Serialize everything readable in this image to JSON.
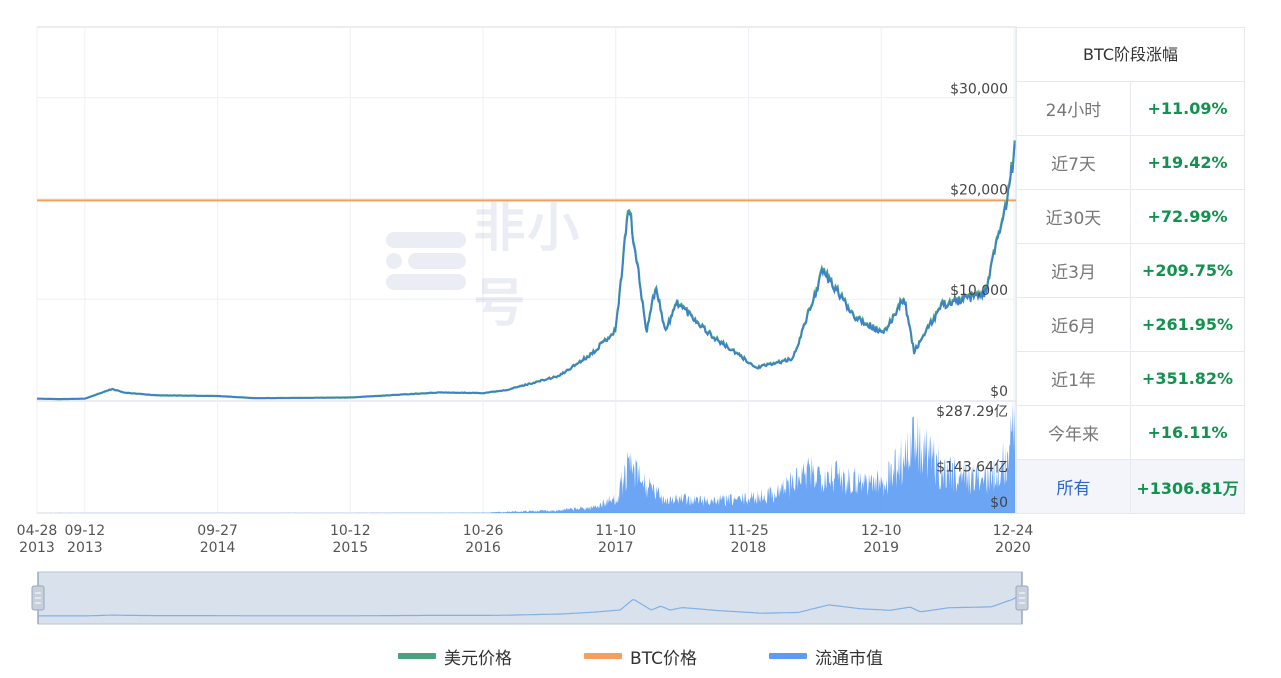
{
  "chart_data": {
    "type": "line",
    "x_axis": {
      "ticks": [
        {
          "date": "2013-04-28",
          "line1": "04-28",
          "line2": "2013"
        },
        {
          "date": "2013-09-12",
          "line1": "09-12",
          "line2": "2013"
        },
        {
          "date": "2014-09-27",
          "line1": "09-27",
          "line2": "2014"
        },
        {
          "date": "2015-10-12",
          "line1": "10-12",
          "line2": "2015"
        },
        {
          "date": "2016-10-26",
          "line1": "10-26",
          "line2": "2016"
        },
        {
          "date": "2017-11-10",
          "line1": "11-10",
          "line2": "2017"
        },
        {
          "date": "2018-11-25",
          "line1": "11-25",
          "line2": "2018"
        },
        {
          "date": "2019-12-10",
          "line1": "12-10",
          "line2": "2019"
        },
        {
          "date": "2020-12-24",
          "line1": "12-24",
          "line2": "2020"
        }
      ]
    },
    "price_axis": {
      "min": 0,
      "max": 37000,
      "ticks": [
        {
          "value": 0,
          "label": "$0"
        },
        {
          "value": 10000,
          "label": "$10,000"
        },
        {
          "value": 20000,
          "label": "$20,000"
        },
        {
          "value": 30000,
          "label": "$30,000"
        }
      ]
    },
    "volume_axis": {
      "min": 0,
      "max": 287.29,
      "ticks": [
        {
          "value": 0,
          "label": "$0"
        },
        {
          "value": 143.64,
          "label": "$143.64亿"
        },
        {
          "value": 287.29,
          "label": "$287.29亿"
        }
      ]
    },
    "series": [
      {
        "name": "美元价格",
        "color": "#4aa37f",
        "points": [
          [
            "2013-04-28",
            135
          ],
          [
            "2013-07-01",
            90
          ],
          [
            "2013-09-12",
            130
          ],
          [
            "2013-11-29",
            1100
          ],
          [
            "2013-12-31",
            750
          ],
          [
            "2014-04-01",
            470
          ],
          [
            "2014-09-27",
            400
          ],
          [
            "2015-01-14",
            180
          ],
          [
            "2015-10-12",
            250
          ],
          [
            "2016-06-17",
            750
          ],
          [
            "2016-10-26",
            690
          ],
          [
            "2017-01-01",
            1000
          ],
          [
            "2017-06-01",
            2400
          ],
          [
            "2017-09-01",
            4600
          ],
          [
            "2017-11-10",
            7000
          ],
          [
            "2017-12-17",
            19500
          ],
          [
            "2018-02-06",
            6900
          ],
          [
            "2018-03-05",
            11400
          ],
          [
            "2018-04-01",
            6800
          ],
          [
            "2018-05-05",
            9800
          ],
          [
            "2018-08-15",
            6300
          ],
          [
            "2018-11-25",
            3800
          ],
          [
            "2018-12-15",
            3200
          ],
          [
            "2019-04-01",
            4100
          ],
          [
            "2019-06-26",
            12900
          ],
          [
            "2019-09-24",
            8400
          ],
          [
            "2019-12-17",
            6600
          ],
          [
            "2020-02-13",
            10300
          ],
          [
            "2020-03-13",
            4800
          ],
          [
            "2020-06-01",
            9500
          ],
          [
            "2020-10-01",
            10600
          ],
          [
            "2020-11-30",
            19200
          ],
          [
            "2020-12-17",
            23000
          ],
          [
            "2020-12-24",
            23700
          ],
          [
            "2020-12-27",
            26500
          ]
        ]
      },
      {
        "name": "BTC价格",
        "color": "#f5a05a",
        "points": [
          [
            "2013-04-28",
            19800
          ],
          [
            "2020-12-27",
            19800
          ]
        ]
      },
      {
        "name": "流通市值",
        "color": "#5b9bf2",
        "points": [
          [
            "2013-04-28",
            0.1
          ],
          [
            "2013-09-12",
            0.2
          ],
          [
            "2014-09-27",
            0.3
          ],
          [
            "2015-10-12",
            0.3
          ],
          [
            "2016-06-17",
            0.8
          ],
          [
            "2016-10-26",
            1
          ],
          [
            "2017-06-01",
            8
          ],
          [
            "2017-09-01",
            15
          ],
          [
            "2017-11-10",
            40
          ],
          [
            "2017-12-17",
            130
          ],
          [
            "2018-02-06",
            75
          ],
          [
            "2018-04-01",
            40
          ],
          [
            "2018-08-15",
            35
          ],
          [
            "2018-11-25",
            40
          ],
          [
            "2019-02-01",
            55
          ],
          [
            "2019-05-15",
            110
          ],
          [
            "2019-07-01",
            115
          ],
          [
            "2019-09-24",
            95
          ],
          [
            "2019-12-17",
            85
          ],
          [
            "2020-03-13",
            200
          ],
          [
            "2020-06-01",
            120
          ],
          [
            "2020-10-01",
            95
          ],
          [
            "2020-11-30",
            145
          ],
          [
            "2020-12-24",
            230
          ],
          [
            "2020-12-27",
            260
          ]
        ]
      }
    ],
    "legend_position": "bottom",
    "grid": true
  },
  "stats": {
    "title": "BTC阶段涨幅",
    "rows": [
      {
        "label": "24小时",
        "value": "+11.09%"
      },
      {
        "label": "近7天",
        "value": "+19.42%"
      },
      {
        "label": "近30天",
        "value": "+72.99%"
      },
      {
        "label": "近3月",
        "value": "+209.75%"
      },
      {
        "label": "近6月",
        "value": "+261.95%"
      },
      {
        "label": "近1年",
        "value": "+351.82%"
      },
      {
        "label": "今年来",
        "value": "+16.11%"
      },
      {
        "label": "所有",
        "value": "+1306.81万"
      }
    ],
    "active_label": "所有"
  },
  "legend": [
    {
      "label": "美元价格",
      "color": "#4aa37f"
    },
    {
      "label": "BTC价格",
      "color": "#f5a05a"
    },
    {
      "label": "流通市值",
      "color": "#5b9bf2"
    }
  ],
  "watermark": {
    "text": "非小号"
  },
  "colors": {
    "grid": "#eef0f5",
    "axis": "#d6dbe6",
    "navigator_fill": "#d9e1ec",
    "navigator_border": "#b7c3d4"
  }
}
